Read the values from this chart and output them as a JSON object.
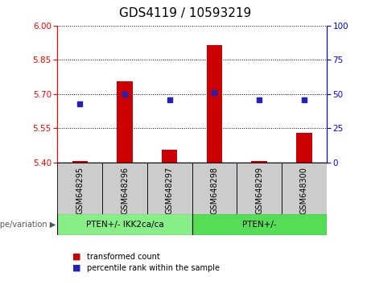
{
  "title": "GDS4119 / 10593219",
  "categories": [
    "GSM648295",
    "GSM648296",
    "GSM648297",
    "GSM648298",
    "GSM648299",
    "GSM648300"
  ],
  "bar_values": [
    5.405,
    5.755,
    5.455,
    5.915,
    5.405,
    5.53
  ],
  "bar_bottom": 5.4,
  "dot_values": [
    43,
    50,
    46,
    51,
    46,
    46
  ],
  "ylim_left": [
    5.4,
    6.0
  ],
  "ylim_right": [
    0,
    100
  ],
  "yticks_left": [
    5.4,
    5.55,
    5.7,
    5.85,
    6.0
  ],
  "yticks_right": [
    0,
    25,
    50,
    75,
    100
  ],
  "bar_color": "#cc0000",
  "dot_color": "#2222bb",
  "groups": [
    {
      "label": "PTEN+/- IKK2ca/ca",
      "indices": [
        0,
        1,
        2
      ],
      "color": "#88ee88"
    },
    {
      "label": "PTEN+/-",
      "indices": [
        3,
        4,
        5
      ],
      "color": "#55dd55"
    }
  ],
  "legend_items": [
    {
      "label": "transformed count",
      "color": "#cc0000"
    },
    {
      "label": "percentile rank within the sample",
      "color": "#2222bb"
    }
  ],
  "title_fontsize": 11,
  "tick_fontsize": 7.5,
  "grid_linestyle": "dotted"
}
